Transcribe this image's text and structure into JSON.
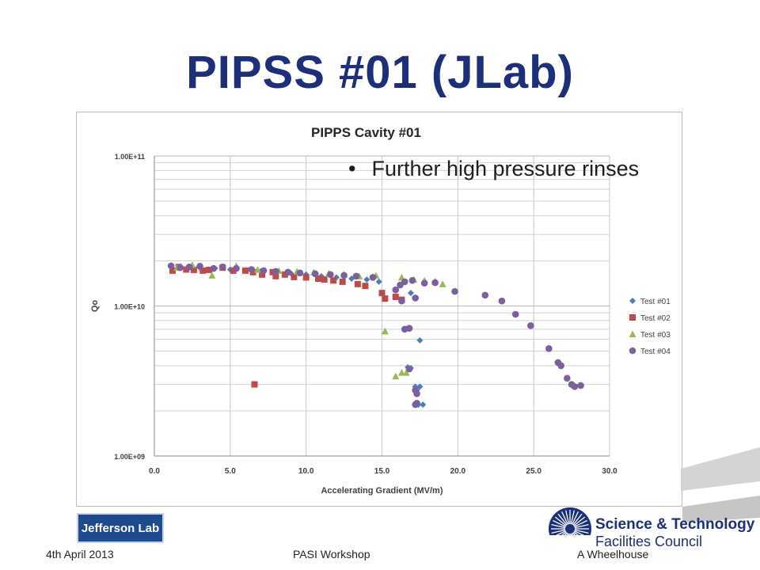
{
  "slide": {
    "title": "PIPSS #01 (JLab)",
    "bullet": "Further high pressure rinses",
    "footer_date": "4th April 2013",
    "footer_event": "PASI Workshop",
    "footer_author": "A Wheelhouse",
    "logo_left_text": "Jefferson Lab",
    "logo_right_line1": "Science & Technology",
    "logo_right_line2": "Facilities Council",
    "colors": {
      "title": "#1c2f78",
      "logo_bg": "#1f4a8d"
    }
  },
  "chart_data": {
    "type": "scatter",
    "title": "PIPPS Cavity #01",
    "xlabel": "Accelerating Gradient (MV/m)",
    "ylabel": "Qo",
    "xlim": [
      0,
      30
    ],
    "ylim": [
      1000000000,
      100000000000
    ],
    "yscale": "log",
    "x_ticks": [
      "0.0",
      "5.0",
      "10.0",
      "15.0",
      "20.0",
      "25.0",
      "30.0"
    ],
    "y_ticks": [
      "1.00E+09",
      "1.00E+10",
      "1.00E+11"
    ],
    "grid": true,
    "legend_position": "right",
    "series": [
      {
        "name": "Test #01",
        "marker": "diamond",
        "color": "#4a7ebb",
        "points": [
          [
            1.2,
            17500000000.0
          ],
          [
            2.2,
            17800000000.0
          ],
          [
            3.0,
            18000000000.0
          ],
          [
            4.0,
            17800000000.0
          ],
          [
            5.0,
            17500000000.0
          ],
          [
            6.0,
            17200000000.0
          ],
          [
            7.0,
            17000000000.0
          ],
          [
            8.0,
            16800000000.0
          ],
          [
            9.0,
            16500000000.0
          ],
          [
            10.0,
            16200000000.0
          ],
          [
            11.0,
            15800000000.0
          ],
          [
            12.0,
            15500000000.0
          ],
          [
            13.0,
            15200000000.0
          ],
          [
            14.0,
            15000000000.0
          ],
          [
            14.8,
            14500000000.0
          ],
          [
            16.9,
            12200000000.0
          ],
          [
            17.5,
            5900000000.0
          ],
          [
            16.7,
            3900000000.0
          ],
          [
            16.9,
            3850000000.0
          ],
          [
            17.2,
            2900000000.0
          ],
          [
            17.5,
            2900000000.0
          ],
          [
            17.3,
            2750000000.0
          ],
          [
            17.7,
            2200000000.0
          ],
          [
            17.4,
            2200000000.0
          ]
        ]
      },
      {
        "name": "Test #02",
        "marker": "square",
        "color": "#be4b48",
        "points": [
          [
            1.2,
            17200000000.0
          ],
          [
            1.6,
            18200000000.0
          ],
          [
            2.1,
            17500000000.0
          ],
          [
            2.6,
            17400000000.0
          ],
          [
            3.2,
            17200000000.0
          ],
          [
            3.6,
            17400000000.0
          ],
          [
            4.5,
            18000000000.0
          ],
          [
            5.2,
            17200000000.0
          ],
          [
            6.0,
            17200000000.0
          ],
          [
            6.5,
            16800000000.0
          ],
          [
            7.1,
            16200000000.0
          ],
          [
            7.8,
            16800000000.0
          ],
          [
            8.0,
            15800000000.0
          ],
          [
            8.6,
            16200000000.0
          ],
          [
            9.2,
            15600000000.0
          ],
          [
            10.0,
            15500000000.0
          ],
          [
            10.8,
            15200000000.0
          ],
          [
            11.2,
            15000000000.0
          ],
          [
            11.8,
            14800000000.0
          ],
          [
            12.4,
            14500000000.0
          ],
          [
            13.4,
            14000000000.0
          ],
          [
            13.9,
            13600000000.0
          ],
          [
            15.0,
            12200000000.0
          ],
          [
            15.2,
            11200000000.0
          ],
          [
            15.9,
            11500000000.0
          ],
          [
            16.3,
            11000000000.0
          ],
          [
            6.6,
            3000000000.0
          ]
        ]
      },
      {
        "name": "Test #03",
        "marker": "triangle",
        "color": "#98b954",
        "points": [
          [
            1.5,
            18000000000.0
          ],
          [
            2.5,
            18800000000.0
          ],
          [
            3.8,
            16000000000.0
          ],
          [
            5.4,
            18500000000.0
          ],
          [
            6.8,
            17500000000.0
          ],
          [
            8.2,
            17200000000.0
          ],
          [
            9.4,
            17000000000.0
          ],
          [
            10.5,
            16800000000.0
          ],
          [
            11.5,
            16500000000.0
          ],
          [
            12.5,
            16200000000.0
          ],
          [
            13.5,
            15800000000.0
          ],
          [
            14.6,
            16000000000.0
          ],
          [
            16.3,
            15500000000.0
          ],
          [
            17.1,
            15000000000.0
          ],
          [
            17.8,
            14800000000.0
          ],
          [
            18.5,
            14600000000.0
          ],
          [
            19.0,
            14000000000.0
          ],
          [
            15.2,
            6800000000.0
          ],
          [
            15.9,
            3400000000.0
          ],
          [
            16.3,
            3600000000.0
          ],
          [
            16.6,
            3600000000.0
          ]
        ]
      },
      {
        "name": "Test #04",
        "marker": "circle",
        "color": "#7d5fa0",
        "points": [
          [
            1.1,
            18500000000.0
          ],
          [
            1.7,
            18000000000.0
          ],
          [
            2.3,
            18200000000.0
          ],
          [
            3.0,
            18400000000.0
          ],
          [
            3.9,
            17800000000.0
          ],
          [
            4.5,
            18200000000.0
          ],
          [
            5.4,
            17800000000.0
          ],
          [
            6.4,
            17500000000.0
          ],
          [
            7.2,
            17200000000.0
          ],
          [
            8.0,
            17000000000.0
          ],
          [
            8.8,
            16800000000.0
          ],
          [
            9.6,
            16600000000.0
          ],
          [
            10.6,
            16400000000.0
          ],
          [
            11.6,
            16200000000.0
          ],
          [
            12.5,
            16000000000.0
          ],
          [
            13.3,
            15800000000.0
          ],
          [
            14.4,
            15500000000.0
          ],
          [
            15.9,
            12800000000.0
          ],
          [
            16.2,
            13800000000.0
          ],
          [
            16.5,
            14500000000.0
          ],
          [
            17.0,
            14800000000.0
          ],
          [
            17.8,
            14200000000.0
          ],
          [
            18.5,
            14300000000.0
          ],
          [
            19.8,
            12500000000.0
          ],
          [
            21.8,
            11800000000.0
          ],
          [
            22.9,
            10800000000.0
          ],
          [
            23.8,
            8800000000.0
          ],
          [
            24.8,
            7400000000.0
          ],
          [
            26.0,
            5200000000.0
          ],
          [
            26.6,
            4200000000.0
          ],
          [
            26.8,
            4000000000.0
          ],
          [
            27.2,
            3300000000.0
          ],
          [
            27.5,
            3000000000.0
          ],
          [
            27.7,
            2900000000.0
          ],
          [
            28.1,
            2950000000.0
          ],
          [
            16.5,
            7000000000.0
          ],
          [
            16.8,
            7100000000.0
          ],
          [
            16.8,
            3800000000.0
          ],
          [
            17.2,
            2750000000.0
          ],
          [
            17.3,
            2600000000.0
          ],
          [
            17.3,
            2250000000.0
          ],
          [
            17.2,
            2200000000.0
          ],
          [
            16.3,
            10800000000.0
          ],
          [
            17.2,
            11300000000.0
          ]
        ]
      }
    ]
  }
}
